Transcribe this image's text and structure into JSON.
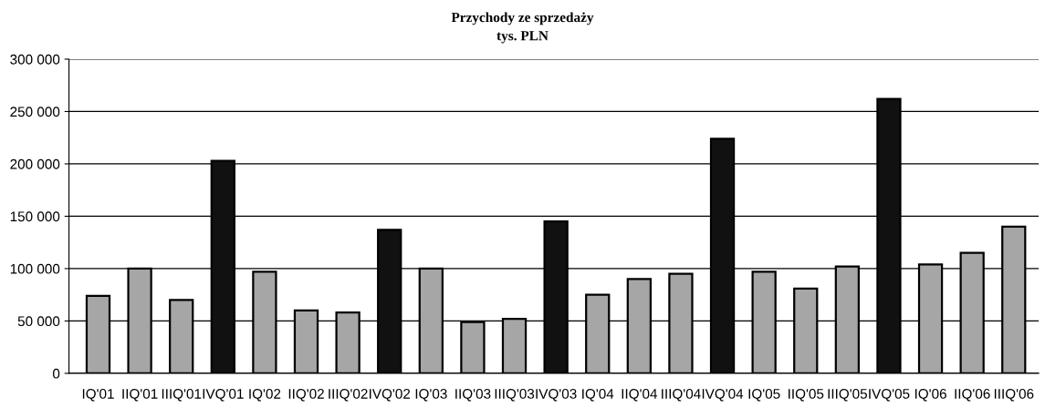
{
  "chart_data": {
    "type": "bar",
    "title": "Przychody ze sprzedaży",
    "subtitle": "tys. PLN",
    "categories": [
      "IQ'01",
      "IIQ'01",
      "IIIQ'01",
      "IVQ'01",
      "IQ'02",
      "IIQ'02",
      "IIIQ'02",
      "IVQ'02",
      "IQ'03",
      "IIQ'03",
      "IIIQ'03",
      "IVQ'03",
      "IQ'04",
      "IIQ'04",
      "IIIQ'04",
      "IVQ'04",
      "IQ'05",
      "IIQ'05",
      "IIIQ'05",
      "IVQ'05",
      "IQ'06",
      "IIQ'06",
      "IIIQ'06"
    ],
    "values": [
      74000,
      100000,
      70000,
      203000,
      97000,
      60000,
      58000,
      137000,
      100000,
      49000,
      52000,
      145000,
      75000,
      90000,
      95000,
      224000,
      97000,
      81000,
      102000,
      262000,
      104000,
      115000,
      140000
    ],
    "colors": [
      "#a6a6a6",
      "#a6a6a6",
      "#a6a6a6",
      "#111111",
      "#a6a6a6",
      "#a6a6a6",
      "#a6a6a6",
      "#111111",
      "#a6a6a6",
      "#a6a6a6",
      "#a6a6a6",
      "#111111",
      "#a6a6a6",
      "#a6a6a6",
      "#a6a6a6",
      "#111111",
      "#a6a6a6",
      "#a6a6a6",
      "#a6a6a6",
      "#111111",
      "#a6a6a6",
      "#a6a6a6",
      "#a6a6a6"
    ],
    "ylim": [
      0,
      300000
    ],
    "yticks": [
      {
        "value": 0,
        "label": "0"
      },
      {
        "value": 50000,
        "label": "50 000"
      },
      {
        "value": 100000,
        "label": "100 000"
      },
      {
        "value": 150000,
        "label": "150 000"
      },
      {
        "value": 200000,
        "label": "200 000"
      },
      {
        "value": 250000,
        "label": "250 000"
      },
      {
        "value": 300000,
        "label": "300 000"
      }
    ],
    "grid": "y"
  }
}
